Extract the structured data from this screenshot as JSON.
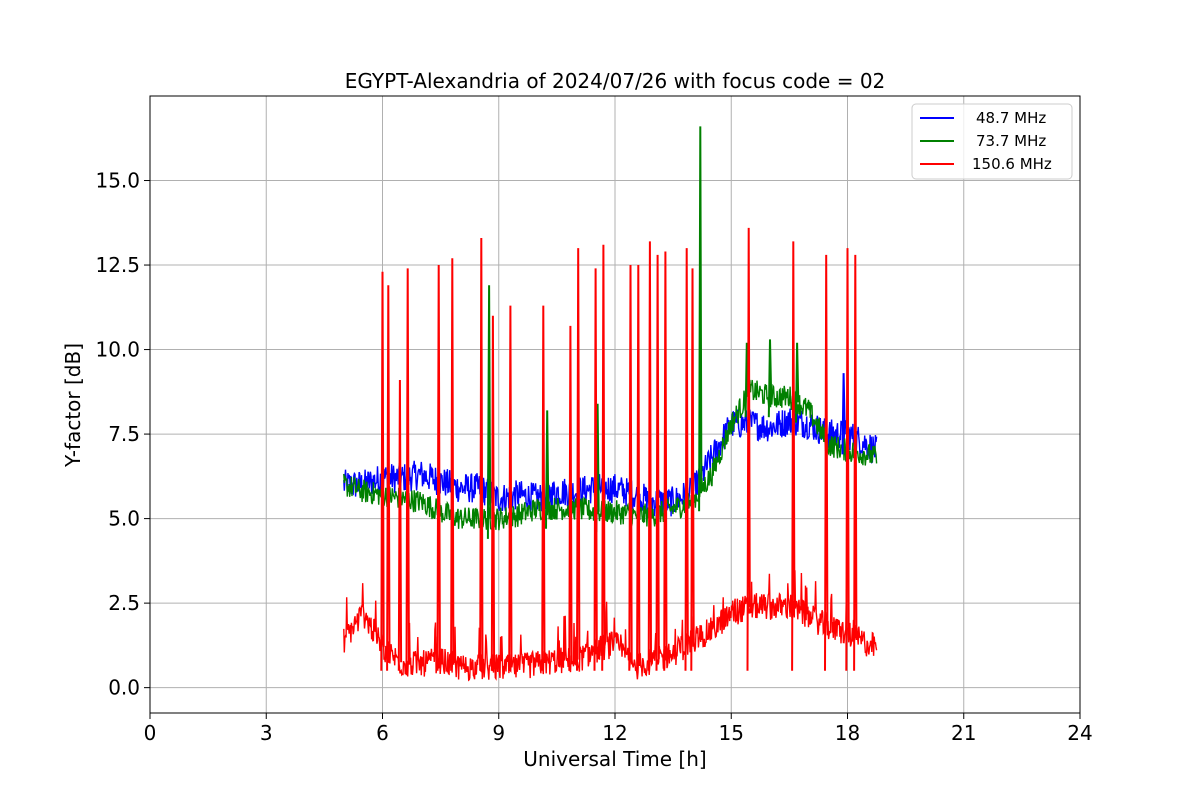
{
  "chart_data": {
    "type": "line",
    "title": "EGYPT-Alexandria of 2024/07/26 with focus code = 02",
    "xlabel": "Universal Time [h]",
    "ylabel": "Y-factor [dB]",
    "xlim": [
      0,
      24
    ],
    "ylim": [
      -0.75,
      17.5
    ],
    "xticks": [
      0,
      3,
      6,
      9,
      12,
      15,
      18,
      21,
      24
    ],
    "xtick_labels": [
      "0",
      "3",
      "6",
      "9",
      "12",
      "15",
      "18",
      "21",
      "24"
    ],
    "yticks": [
      0.0,
      2.5,
      5.0,
      7.5,
      10.0,
      12.5,
      15.0
    ],
    "ytick_labels": [
      "0.0",
      "2.5",
      "5.0",
      "7.5",
      "10.0",
      "12.5",
      "15.0"
    ],
    "grid": true,
    "legend_position": "top-right",
    "series": [
      {
        "name": "48.7 MHz",
        "color": "#0000ff",
        "x": [
          5.0,
          5.5,
          6.0,
          6.5,
          7.0,
          7.5,
          8.0,
          8.5,
          9.0,
          9.5,
          10.0,
          10.5,
          11.0,
          11.5,
          12.0,
          12.5,
          13.0,
          13.5,
          14.0,
          14.5,
          15.0,
          15.5,
          16.0,
          16.5,
          17.0,
          17.5,
          18.0,
          18.5,
          18.75
        ],
        "y": [
          6.0,
          6.0,
          6.2,
          6.2,
          6.3,
          6.1,
          5.9,
          5.9,
          5.6,
          5.7,
          5.6,
          5.8,
          5.8,
          5.9,
          5.9,
          5.7,
          5.5,
          5.5,
          5.8,
          6.8,
          7.8,
          7.8,
          7.7,
          7.9,
          7.8,
          7.5,
          7.5,
          7.2,
          7.0
        ]
      },
      {
        "name": "73.7 MHz",
        "color": "#008000",
        "x": [
          5.0,
          5.5,
          6.0,
          6.5,
          7.0,
          7.5,
          8.0,
          8.5,
          9.0,
          9.5,
          10.0,
          10.5,
          11.0,
          11.5,
          12.0,
          12.5,
          13.0,
          13.5,
          14.0,
          14.5,
          15.0,
          15.5,
          16.0,
          16.5,
          17.0,
          17.5,
          18.0,
          18.5,
          18.75
        ],
        "y": [
          6.0,
          5.8,
          5.7,
          5.6,
          5.5,
          5.2,
          5.0,
          5.0,
          5.0,
          5.1,
          5.3,
          5.3,
          5.3,
          5.2,
          5.2,
          5.1,
          5.1,
          5.3,
          5.5,
          6.3,
          7.8,
          8.8,
          8.6,
          8.6,
          8.2,
          7.2,
          7.0,
          6.9,
          6.8
        ]
      },
      {
        "name": "150.6 MHz",
        "color": "#ff0000",
        "x": [
          5.0,
          5.5,
          6.0,
          6.5,
          7.0,
          7.5,
          8.0,
          8.5,
          9.0,
          9.5,
          10.0,
          10.5,
          11.0,
          11.5,
          12.0,
          12.5,
          13.0,
          13.5,
          14.0,
          14.5,
          15.0,
          15.5,
          16.0,
          16.5,
          17.0,
          17.5,
          18.0,
          18.5,
          18.75
        ],
        "y": [
          1.4,
          2.2,
          1.2,
          0.7,
          0.7,
          0.8,
          0.6,
          0.6,
          0.6,
          0.6,
          0.7,
          0.8,
          0.8,
          1.1,
          1.3,
          0.6,
          0.8,
          1.0,
          1.4,
          1.7,
          2.2,
          2.4,
          2.4,
          2.4,
          2.1,
          1.8,
          1.6,
          1.3,
          1.2
        ]
      }
    ],
    "spikes": [
      {
        "series": "150.6 MHz",
        "x": 6.0,
        "y": 12.3
      },
      {
        "series": "150.6 MHz",
        "x": 6.15,
        "y": 11.9
      },
      {
        "series": "150.6 MHz",
        "x": 6.45,
        "y": 9.1
      },
      {
        "series": "150.6 MHz",
        "x": 6.65,
        "y": 12.4
      },
      {
        "series": "150.6 MHz",
        "x": 7.45,
        "y": 12.5
      },
      {
        "series": "150.6 MHz",
        "x": 7.8,
        "y": 12.7
      },
      {
        "series": "150.6 MHz",
        "x": 8.55,
        "y": 13.3
      },
      {
        "series": "150.6 MHz",
        "x": 8.85,
        "y": 11.0
      },
      {
        "series": "150.6 MHz",
        "x": 9.3,
        "y": 11.3
      },
      {
        "series": "150.6 MHz",
        "x": 10.15,
        "y": 11.3
      },
      {
        "series": "150.6 MHz",
        "x": 10.85,
        "y": 10.7
      },
      {
        "series": "150.6 MHz",
        "x": 11.05,
        "y": 13.0
      },
      {
        "series": "150.6 MHz",
        "x": 11.5,
        "y": 12.4
      },
      {
        "series": "150.6 MHz",
        "x": 11.7,
        "y": 13.1
      },
      {
        "series": "150.6 MHz",
        "x": 12.4,
        "y": 12.5
      },
      {
        "series": "150.6 MHz",
        "x": 12.6,
        "y": 12.5
      },
      {
        "series": "150.6 MHz",
        "x": 12.9,
        "y": 13.2
      },
      {
        "series": "150.6 MHz",
        "x": 13.1,
        "y": 12.8
      },
      {
        "series": "150.6 MHz",
        "x": 13.3,
        "y": 12.9
      },
      {
        "series": "150.6 MHz",
        "x": 13.85,
        "y": 13.0
      },
      {
        "series": "150.6 MHz",
        "x": 14.0,
        "y": 12.4
      },
      {
        "series": "150.6 MHz",
        "x": 15.45,
        "y": 13.6
      },
      {
        "series": "150.6 MHz",
        "x": 16.6,
        "y": 13.2
      },
      {
        "series": "150.6 MHz",
        "x": 17.45,
        "y": 12.8
      },
      {
        "series": "150.6 MHz",
        "x": 18.0,
        "y": 13.0
      },
      {
        "series": "150.6 MHz",
        "x": 18.2,
        "y": 12.8
      },
      {
        "series": "73.7 MHz",
        "x": 8.75,
        "y": 11.9
      },
      {
        "series": "73.7 MHz",
        "x": 10.25,
        "y": 8.2
      },
      {
        "series": "73.7 MHz",
        "x": 11.55,
        "y": 8.4
      },
      {
        "series": "73.7 MHz",
        "x": 14.2,
        "y": 16.6
      },
      {
        "series": "73.7 MHz",
        "x": 15.4,
        "y": 10.2
      },
      {
        "series": "73.7 MHz",
        "x": 16.0,
        "y": 10.3
      },
      {
        "series": "73.7 MHz",
        "x": 16.7,
        "y": 10.2
      },
      {
        "series": "48.7 MHz",
        "x": 8.75,
        "y": 8.3
      },
      {
        "series": "48.7 MHz",
        "x": 17.9,
        "y": 9.3
      }
    ]
  }
}
